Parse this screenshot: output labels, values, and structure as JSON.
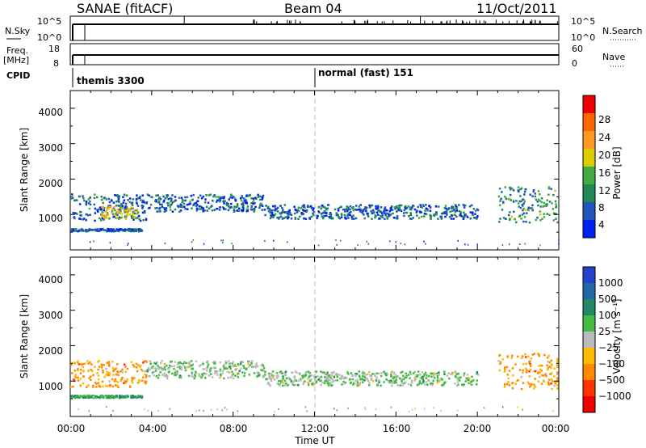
{
  "header": {
    "station": "SANAE (fitACF)",
    "beam": "Beam 04",
    "date": "11/Oct/2011"
  },
  "top_panel": {
    "left_label": "N.Sky",
    "right_label": "N.Search",
    "left_ticks": [
      "10^5",
      "10^0"
    ],
    "right_ticks": [
      "10^5",
      "10^0"
    ]
  },
  "freq_panel": {
    "left_label_1": "Freq.",
    "left_label_2": "[MHz]",
    "right_label": "Nave",
    "left_ticks": [
      "18",
      "8"
    ],
    "right_ticks": [
      "60",
      "0"
    ]
  },
  "cpid_panel": {
    "label": "CPID",
    "segments": [
      "themis 3300",
      "normal (fast) 151"
    ]
  },
  "time_axis": {
    "label": "Time UT",
    "ticks": [
      "00:00",
      "04:00",
      "08:00",
      "12:00",
      "16:00",
      "20:00",
      "00:00"
    ]
  },
  "power_panel": {
    "ylabel": "Slant Range [km]",
    "yticks": [
      "1000",
      "2000",
      "3000",
      "4000"
    ],
    "colorbar_label": "Power [dB]",
    "colorbar_ticks": [
      "4",
      "8",
      "12",
      "16",
      "20",
      "24",
      "28"
    ],
    "colors": [
      "#0022ee",
      "#2255bb",
      "#228855",
      "#44aa44",
      "#ddcc00",
      "#ff9922",
      "#ff6600",
      "#ee0000"
    ]
  },
  "velocity_panel": {
    "ylabel": "Slant Range [km]",
    "yticks": [
      "1000",
      "2000",
      "3000",
      "4000"
    ],
    "colorbar_label": "Velocity [m s⁻¹]",
    "colorbar_ticks": [
      "1000",
      "500",
      "100",
      "25",
      "−25",
      "−100",
      "−500",
      "−1000"
    ],
    "colors": [
      "#2244cc",
      "#2266aa",
      "#228866",
      "#44bb44",
      "#bbbbbb",
      "#ffbb00",
      "#ff8800",
      "#ff3300",
      "#ee0000"
    ]
  },
  "chart_data": [
    {
      "type": "heatmap",
      "title": "Power",
      "xlabel": "Time UT",
      "ylabel": "Slant Range [km]",
      "xlim_hours": [
        0,
        24
      ],
      "ylim": [
        0,
        4500
      ],
      "zlabel": "Power [dB]",
      "zlim": [
        0,
        30
      ],
      "approximate_echo_regions": [
        {
          "t_start": 0.0,
          "t_end": 3.7,
          "range_min": 850,
          "range_max": 1600,
          "power_db": 6
        },
        {
          "t_start": 1.5,
          "t_end": 3.3,
          "range_min": 900,
          "range_max": 1250,
          "power_db": 16
        },
        {
          "t_start": 0.0,
          "t_end": 3.5,
          "range_min": 550,
          "range_max": 620,
          "power_db": 6
        },
        {
          "t_start": 3.7,
          "t_end": 9.5,
          "range_min": 1100,
          "range_max": 1600,
          "power_db": 5
        },
        {
          "t_start": 9.5,
          "t_end": 20.0,
          "range_min": 900,
          "range_max": 1300,
          "power_db": 4
        },
        {
          "t_start": 21.0,
          "t_end": 24.0,
          "range_min": 800,
          "range_max": 1800,
          "power_db": 8
        }
      ]
    },
    {
      "type": "heatmap",
      "title": "Velocity",
      "xlabel": "Time UT",
      "ylabel": "Slant Range [km]",
      "xlim_hours": [
        0,
        24
      ],
      "ylim": [
        0,
        4500
      ],
      "zlabel": "Velocity [m s⁻¹]",
      "zlim": [
        -1000,
        1000
      ],
      "approximate_echo_regions": [
        {
          "t_start": 0.0,
          "t_end": 3.7,
          "range_min": 850,
          "range_max": 1600,
          "velocity": -300
        },
        {
          "t_start": 0.0,
          "t_end": 3.5,
          "range_min": 550,
          "range_max": 620,
          "velocity": 100
        },
        {
          "t_start": 3.7,
          "t_end": 9.5,
          "range_min": 1100,
          "range_max": 1600,
          "velocity": 0
        },
        {
          "t_start": 9.5,
          "t_end": 20.0,
          "range_min": 900,
          "range_max": 1300,
          "velocity": 0
        },
        {
          "t_start": 21.0,
          "t_end": 24.0,
          "range_min": 800,
          "range_max": 1800,
          "velocity": -300
        }
      ]
    }
  ]
}
